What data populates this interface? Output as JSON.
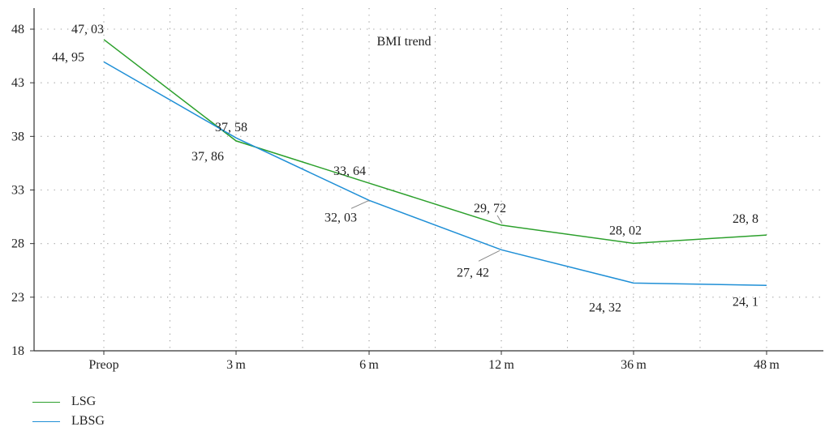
{
  "chart_data": {
    "type": "line",
    "title": "BMI trend",
    "categories": [
      "Preop",
      "3 m",
      "6 m",
      "12 m",
      "36 m",
      "48 m"
    ],
    "ylim": [
      18,
      48
    ],
    "yticks": [
      18,
      23,
      28,
      33,
      38,
      43,
      48
    ],
    "grid": true,
    "legend_position": "bottom-left",
    "series": [
      {
        "name": "LSG",
        "color": "#2ca02c",
        "values": [
          47.03,
          37.58,
          33.64,
          29.72,
          28.02,
          28.8
        ],
        "labels": [
          "47, 03",
          "37, 58",
          "33, 64",
          "29, 72",
          "28, 02",
          "28, 8"
        ]
      },
      {
        "name": "LBSG",
        "color": "#1f8fd6",
        "values": [
          44.95,
          37.86,
          32.03,
          27.42,
          24.32,
          24.1
        ],
        "labels": [
          "44, 95",
          "37, 86",
          "32, 03",
          "27, 42",
          "24, 32",
          "24, 1"
        ]
      }
    ]
  }
}
